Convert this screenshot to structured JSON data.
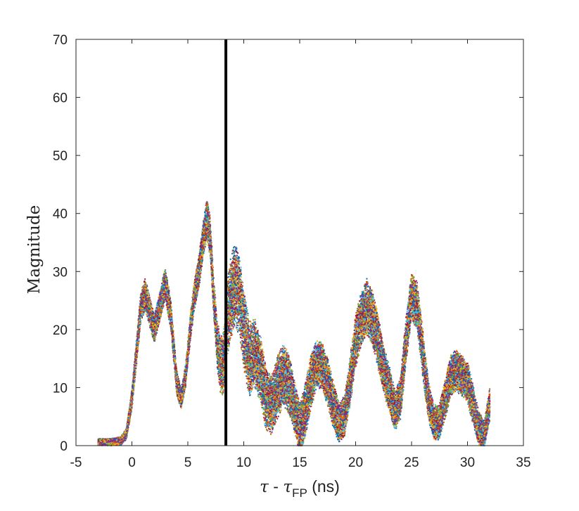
{
  "chart_data": {
    "type": "scatter",
    "title": "",
    "xlabel": {
      "tau": "τ",
      "minus": " - ",
      "tau2": "τ",
      "sub": "FP",
      "unit": " (ns)"
    },
    "ylabel": "Magnitude",
    "xlim": [
      -5,
      35
    ],
    "ylim": [
      0,
      70
    ],
    "xticks": [
      -5,
      0,
      5,
      10,
      15,
      20,
      25,
      30,
      35
    ],
    "yticks": [
      0,
      10,
      20,
      30,
      40,
      50,
      60,
      70
    ],
    "grid": false,
    "vertical_line": {
      "x": 8.4,
      "color": "#000000"
    },
    "envelope": {
      "description_units": "x in ns, y = Magnitude",
      "x": [
        -3.0,
        -2.0,
        -1.0,
        -0.5,
        0.0,
        0.4,
        0.8,
        1.2,
        1.6,
        2.0,
        2.5,
        3.0,
        3.5,
        4.0,
        4.4,
        4.8,
        5.2,
        5.6,
        6.0,
        6.4,
        6.7,
        7.0,
        7.3,
        7.6,
        7.9,
        8.2,
        8.5,
        8.8,
        9.2,
        9.6,
        10.0,
        10.5,
        11.0,
        11.5,
        12.0,
        12.5,
        13.0,
        13.5,
        14.0,
        14.5,
        15.0,
        15.5,
        16.0,
        16.5,
        17.0,
        17.5,
        18.0,
        18.5,
        19.0,
        19.5,
        20.0,
        20.5,
        21.0,
        21.5,
        22.0,
        22.5,
        23.0,
        23.5,
        24.0,
        24.5,
        25.0,
        25.5,
        26.0,
        26.5,
        27.0,
        27.5,
        28.0,
        28.5,
        29.0,
        29.5,
        30.0,
        30.5,
        31.0,
        31.5,
        32.0
      ],
      "y": [
        0.6,
        0.6,
        0.8,
        2.0,
        8.0,
        16.0,
        24.0,
        26.0,
        23.0,
        20.0,
        24.0,
        28.0,
        22.0,
        11.0,
        8.0,
        12.0,
        20.0,
        26.0,
        30.0,
        36.0,
        39.0,
        36.0,
        26.0,
        18.0,
        14.0,
        14.0,
        22.0,
        25.0,
        28.0,
        26.0,
        20.0,
        15.0,
        16.0,
        13.0,
        8.0,
        7.0,
        10.0,
        12.0,
        11.0,
        7.0,
        3.0,
        6.0,
        11.0,
        14.0,
        14.0,
        11.0,
        7.0,
        4.0,
        5.0,
        11.0,
        18.0,
        22.0,
        24.0,
        22.0,
        18.0,
        13.0,
        10.0,
        6.0,
        8.0,
        18.0,
        26.0,
        24.0,
        16.0,
        8.0,
        4.0,
        4.0,
        8.0,
        12.0,
        13.0,
        12.0,
        11.0,
        7.0,
        3.0,
        2.0,
        7.0
      ],
      "spread": [
        0.5,
        0.5,
        0.6,
        0.8,
        1.5,
        2.0,
        2.2,
        2.4,
        2.2,
        2.0,
        2.2,
        2.4,
        2.2,
        1.8,
        1.5,
        1.6,
        2.0,
        2.2,
        2.4,
        2.6,
        3.0,
        3.0,
        3.0,
        3.5,
        4.0,
        5.0,
        6.0,
        6.0,
        6.0,
        6.0,
        6.0,
        5.5,
        5.0,
        5.0,
        4.5,
        4.5,
        4.5,
        4.5,
        4.5,
        4.0,
        3.5,
        4.0,
        4.0,
        3.5,
        3.5,
        3.5,
        3.5,
        3.0,
        3.0,
        3.5,
        4.0,
        4.0,
        4.0,
        4.0,
        4.0,
        3.5,
        3.5,
        3.0,
        3.0,
        3.5,
        3.5,
        3.5,
        3.5,
        3.0,
        2.5,
        2.5,
        3.0,
        3.0,
        3.0,
        3.0,
        3.0,
        3.0,
        2.5,
        2.0,
        2.5
      ]
    },
    "series_colors": [
      "#0072bd",
      "#d95319",
      "#edb120",
      "#7e2f8e",
      "#77ac30",
      "#4dbeee",
      "#a2142f"
    ],
    "marker": "dot",
    "num_traces": 60
  }
}
